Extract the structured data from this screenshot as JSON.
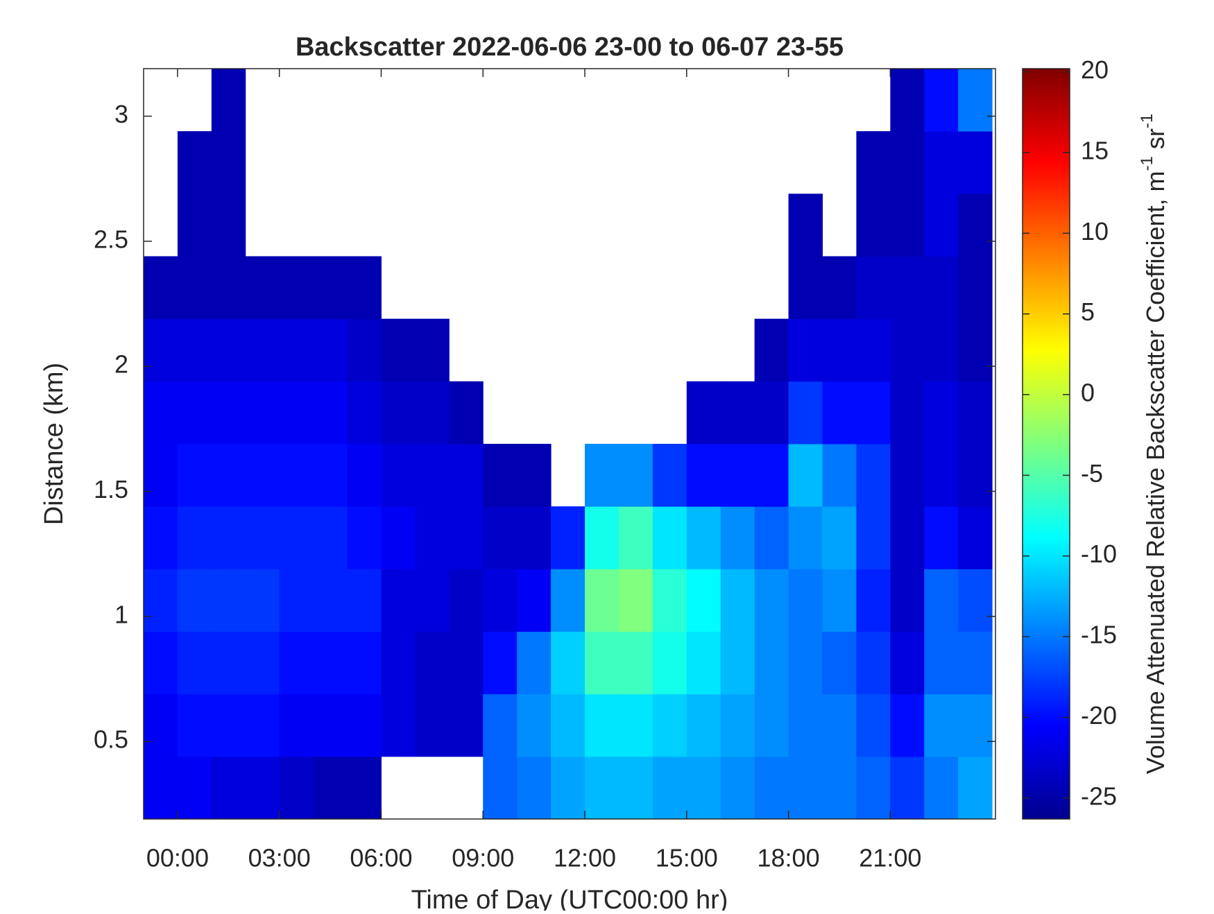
{
  "chart_data": {
    "type": "heatmap",
    "title": "Backscatter 2022-06-06 23-00 to 06-07 23-55",
    "x_label": "Time of Day (UTC00:00 hr)",
    "y_label": "Distance (km)",
    "colorbar_label": [
      "Volume Attenuated Relative Backscatter Coefficient, m",
      "-1",
      "sr",
      "-1"
    ],
    "colormap": "jet",
    "xlim": [
      -1.0,
      24.1
    ],
    "ylim": [
      0.19,
      3.19
    ],
    "clim": [
      -26.3,
      20.2
    ],
    "xticks": [
      {
        "value": 0,
        "label": "00:00"
      },
      {
        "value": 3,
        "label": "03:00"
      },
      {
        "value": 6,
        "label": "06:00"
      },
      {
        "value": 9,
        "label": "09:00"
      },
      {
        "value": 12,
        "label": "12:00"
      },
      {
        "value": 15,
        "label": "15:00"
      },
      {
        "value": 18,
        "label": "18:00"
      },
      {
        "value": 21,
        "label": "21:00"
      }
    ],
    "yticks": [
      0.5,
      1,
      1.5,
      2,
      2.5,
      3
    ],
    "cticks": [
      -25,
      -20,
      -15,
      -10,
      -5,
      0,
      5,
      10,
      15,
      20
    ],
    "x": [
      -0.5,
      0.5,
      1.5,
      2.5,
      3.5,
      4.5,
      5.5,
      6.5,
      7.5,
      8.5,
      9.5,
      10.5,
      11.5,
      12.5,
      13.5,
      14.5,
      15.5,
      16.5,
      17.5,
      18.5,
      19.5,
      20.5,
      21.5,
      22.5,
      23.5
    ],
    "y": [
      0.315,
      0.565,
      0.815,
      1.065,
      1.315,
      1.565,
      1.815,
      2.065,
      2.315,
      2.565,
      2.815,
      3.065
    ],
    "values": [
      [
        -21,
        -21,
        -20,
        -19,
        -20,
        -21,
        -21,
        -22,
        -24,
        null,
        null,
        null
      ],
      [
        -21,
        -20,
        -19,
        -18,
        -19,
        -20,
        -21,
        -22,
        -24,
        -24,
        -24,
        null
      ],
      [
        -22,
        -20,
        -19,
        -18,
        -19,
        -20,
        -21,
        -22,
        -24,
        -24,
        -24,
        -24
      ],
      [
        -22,
        -20,
        -19,
        -18,
        -19,
        -20,
        -21,
        -22,
        -24,
        null,
        null,
        null
      ],
      [
        -23,
        -21,
        -20,
        -19,
        -19,
        -20,
        -21,
        -22,
        -24,
        null,
        null,
        null
      ],
      [
        -24,
        -21,
        -20,
        -19,
        -19,
        -20,
        -21,
        -22,
        -24,
        null,
        null,
        null
      ],
      [
        -24,
        -21,
        -20,
        -19,
        -20,
        -21,
        -22,
        -23,
        -24,
        null,
        null,
        null
      ],
      [
        null,
        -22,
        -22,
        -22,
        -21,
        -22,
        -23,
        -24,
        null,
        null,
        null,
        null
      ],
      [
        null,
        -23,
        -23,
        -22,
        -22,
        -22,
        -23,
        -24,
        null,
        null,
        null,
        null
      ],
      [
        null,
        -23,
        -23,
        -23,
        -22,
        -22,
        -24,
        null,
        null,
        null,
        null,
        null
      ],
      [
        -16,
        -16,
        -20,
        -22,
        -23,
        -24,
        null,
        null,
        null,
        null,
        null,
        null
      ],
      [
        -15,
        -14,
        -15,
        -21,
        -23,
        -24,
        null,
        null,
        null,
        null,
        null,
        null
      ],
      [
        -13,
        -12,
        -11,
        -14,
        -19,
        null,
        null,
        null,
        null,
        null,
        null,
        null
      ],
      [
        -12,
        -10,
        -6,
        -4,
        -8,
        -14,
        null,
        null,
        null,
        null,
        null,
        null
      ],
      [
        -12,
        -10,
        -6,
        -3,
        -6,
        -14,
        null,
        null,
        null,
        null,
        null,
        null
      ],
      [
        -13,
        -11,
        -8,
        -7,
        -10,
        -18,
        null,
        null,
        null,
        null,
        null,
        null
      ],
      [
        -13,
        -12,
        -10,
        -9,
        -12,
        -20,
        -23,
        null,
        null,
        null,
        null,
        null
      ],
      [
        -14,
        -13,
        -12,
        -12,
        -14,
        -20,
        -23,
        null,
        null,
        null,
        null,
        null
      ],
      [
        -15,
        -14,
        -14,
        -14,
        -16,
        -20,
        -23,
        -24,
        null,
        null,
        null,
        null
      ],
      [
        -15,
        -15,
        -15,
        -15,
        -14,
        -12,
        -18,
        -22,
        -24,
        -24,
        null,
        null
      ],
      [
        -15,
        -15,
        -16,
        -14,
        -13,
        -15,
        -20,
        -22,
        -24,
        null,
        null,
        null
      ],
      [
        -16,
        -17,
        -18,
        -19,
        -18,
        -18,
        -20,
        -22,
        -23,
        -24,
        -24,
        null
      ],
      [
        -18,
        -20,
        -22,
        -23,
        -23,
        -23,
        -23,
        -23,
        -23,
        -24,
        -24,
        -24
      ],
      [
        -15,
        -14,
        -16,
        -16,
        -20,
        -22,
        -22,
        -23,
        -23,
        -22,
        -22,
        -20
      ],
      [
        -13,
        -14,
        -16,
        -17,
        -22,
        -23,
        -23,
        -24,
        -24,
        -24,
        -22,
        -15
      ]
    ]
  }
}
